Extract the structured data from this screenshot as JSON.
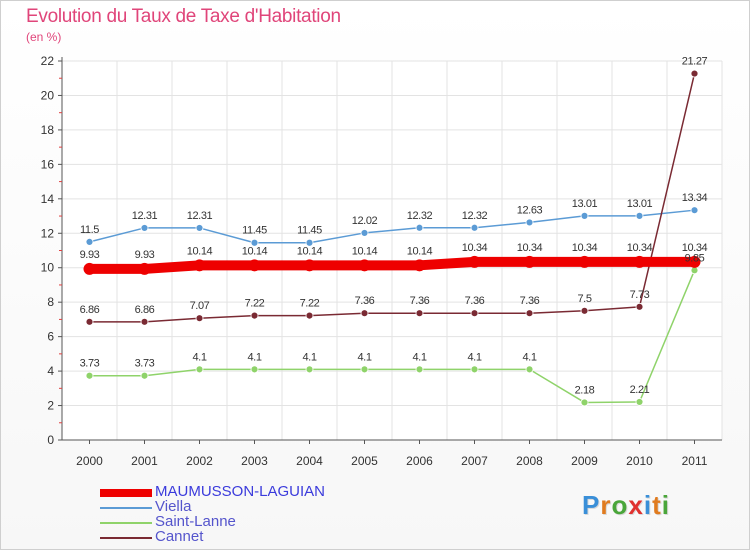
{
  "chart_data": {
    "type": "line",
    "title": "Evolution du Taux de Taxe d'Habitation",
    "subtitle": "(en %)",
    "xlabel": "",
    "ylabel": "",
    "categories": [
      "2000",
      "2001",
      "2002",
      "2003",
      "2004",
      "2005",
      "2006",
      "2007",
      "2008",
      "2009",
      "2010",
      "2011"
    ],
    "ylim": [
      0,
      22
    ],
    "yticks": [
      0,
      2,
      4,
      6,
      8,
      10,
      12,
      14,
      16,
      18,
      20,
      22
    ],
    "grid": true,
    "series": [
      {
        "name": "MAUMUSSON-LAGUIAN",
        "color": "#ee0000",
        "values": [
          9.93,
          9.93,
          10.14,
          10.14,
          10.14,
          10.14,
          10.14,
          10.34,
          10.34,
          10.34,
          10.34,
          10.34
        ],
        "labels": [
          "9.93",
          "9.93",
          "10.14",
          "10.14",
          "10.14",
          "10.14",
          "10.14",
          "10.34",
          "10.34",
          "10.34",
          "10.34",
          "10.34"
        ]
      },
      {
        "name": "Viella",
        "color": "#5b9bd5",
        "values": [
          11.5,
          12.31,
          12.31,
          11.45,
          11.45,
          12.02,
          12.32,
          12.32,
          12.63,
          13.01,
          13.01,
          13.34
        ],
        "labels": [
          "11.5",
          "12.31",
          "12.31",
          "11.45",
          "11.45",
          "12.02",
          "12.32",
          "12.32",
          "12.63",
          "13.01",
          "13.01",
          "13.34"
        ]
      },
      {
        "name": "Saint-Lanne",
        "color": "#8fd36a",
        "values": [
          3.73,
          3.73,
          4.1,
          4.1,
          4.1,
          4.1,
          4.1,
          4.1,
          4.1,
          2.18,
          2.21,
          9.85
        ],
        "labels": [
          "3.73",
          "3.73",
          "4.1",
          "4.1",
          "4.1",
          "4.1",
          "4.1",
          "4.1",
          "4.1",
          "2.18",
          "2.21",
          "9.85"
        ]
      },
      {
        "name": "Cannet",
        "color": "#7a2a33",
        "values": [
          6.86,
          6.86,
          7.07,
          7.22,
          7.22,
          7.36,
          7.36,
          7.36,
          7.36,
          7.5,
          7.73,
          21.27
        ],
        "labels": [
          "6.86",
          "6.86",
          "7.07",
          "7.22",
          "7.22",
          "7.36",
          "7.36",
          "7.36",
          "7.36",
          "7.5",
          "7.73",
          "21.27"
        ]
      }
    ]
  },
  "logo": {
    "text": "Proxiti"
  }
}
